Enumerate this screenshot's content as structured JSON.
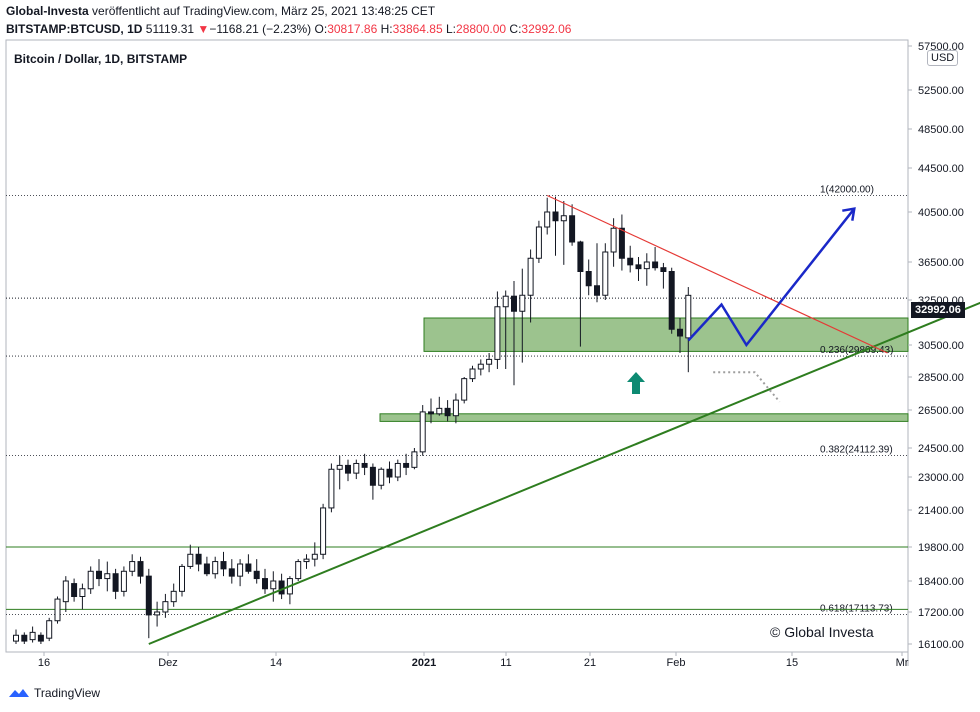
{
  "header": {
    "author": "Global-Investa",
    "published_text": "veröffentlicht auf TradingView.com, März 25, 2021 13:48:25 CET",
    "symbol": "BITSTAMP:BTCUSD, 1D",
    "last": "51119.31",
    "change": "−1168.21 (−2.23%)",
    "o_label": "O:",
    "o_val": "30817.86",
    "h_label": "H:",
    "h_val": "33864.85",
    "l_label": "L:",
    "l_val": "28800.00",
    "c_label": "C:",
    "c_val": "32992.06"
  },
  "chart_title": "Bitcoin / Dollar, 1D, BITSTAMP",
  "currency": "USD",
  "last_price_label": "32992.06",
  "copyright": "© Global Investa",
  "brand": "TradingView",
  "colors": {
    "up": "#ffffff",
    "down": "#131722",
    "zone": "#8bb87a",
    "trend": "#2e7d1f",
    "resist": "#e53935",
    "projection": "#1a28c8",
    "arrow": "#0d8a72",
    "grid": "#131722"
  },
  "chart_data": {
    "type": "candlestick",
    "ylim": [
      16100,
      57500
    ],
    "y_ticks": [
      57500,
      52500,
      48500,
      44500,
      40500,
      36500,
      32500,
      30500,
      28500,
      26500,
      24500,
      23000,
      21400,
      19800,
      18400,
      17200,
      16100
    ],
    "y_tick_labels": [
      "57500.00",
      "52500.00",
      "48500.00",
      "44500.00",
      "40500.00",
      "36500.00",
      "32500.00",
      "30500.00",
      "28500.00",
      "26500.00",
      "24500.00",
      "23000.00",
      "21400.00",
      "19800.00",
      "18400.00",
      "17200.00",
      "16100.00"
    ],
    "x_tick_labels": [
      "16",
      "Dez",
      "14",
      "2021",
      "11",
      "21",
      "Feb",
      "15",
      "Mr"
    ],
    "fib_levels": [
      {
        "label": "1(42000.00)",
        "value": 42000
      },
      {
        "label": "0.236(29809.43)",
        "value": 29809
      },
      {
        "label": "0.382(24112.39)",
        "value": 24112
      },
      {
        "label": "0.618(17113.73)",
        "value": 17114
      }
    ],
    "horizontal_levels": [
      32700,
      19800,
      17300
    ],
    "support_zones": [
      {
        "from": 30100,
        "to": 31700
      },
      {
        "from": 25900,
        "to": 26300
      }
    ],
    "candles": [
      {
        "d": 0,
        "o": 16200,
        "h": 16600,
        "l": 16100,
        "c": 16400
      },
      {
        "d": 1,
        "o": 16400,
        "h": 16500,
        "l": 16100,
        "c": 16200
      },
      {
        "d": 2,
        "o": 16250,
        "h": 16700,
        "l": 16150,
        "c": 16500
      },
      {
        "d": 3,
        "o": 16400,
        "h": 16500,
        "l": 16100,
        "c": 16200
      },
      {
        "d": 4,
        "o": 16300,
        "h": 17000,
        "l": 16200,
        "c": 16900
      },
      {
        "d": 5,
        "o": 16900,
        "h": 17800,
        "l": 16800,
        "c": 17700
      },
      {
        "d": 6,
        "o": 17600,
        "h": 18600,
        "l": 17200,
        "c": 18400
      },
      {
        "d": 7,
        "o": 18300,
        "h": 18500,
        "l": 17600,
        "c": 17800
      },
      {
        "d": 8,
        "o": 17800,
        "h": 18300,
        "l": 17300,
        "c": 18100
      },
      {
        "d": 9,
        "o": 18100,
        "h": 19000,
        "l": 17900,
        "c": 18800
      },
      {
        "d": 10,
        "o": 18800,
        "h": 19300,
        "l": 18200,
        "c": 18500
      },
      {
        "d": 11,
        "o": 18500,
        "h": 19200,
        "l": 18000,
        "c": 18700
      },
      {
        "d": 12,
        "o": 18700,
        "h": 18900,
        "l": 17700,
        "c": 18000
      },
      {
        "d": 13,
        "o": 18000,
        "h": 19000,
        "l": 17800,
        "c": 18800
      },
      {
        "d": 14,
        "o": 18800,
        "h": 19500,
        "l": 18600,
        "c": 19200
      },
      {
        "d": 15,
        "o": 19200,
        "h": 19400,
        "l": 18300,
        "c": 18600
      },
      {
        "d": 16,
        "o": 18600,
        "h": 18900,
        "l": 16300,
        "c": 17100
      },
      {
        "d": 17,
        "o": 17100,
        "h": 17600,
        "l": 16700,
        "c": 17200
      },
      {
        "d": 18,
        "o": 17200,
        "h": 17900,
        "l": 17000,
        "c": 17600
      },
      {
        "d": 19,
        "o": 17600,
        "h": 18300,
        "l": 17400,
        "c": 18000
      },
      {
        "d": 20,
        "o": 18000,
        "h": 19100,
        "l": 17800,
        "c": 19000
      },
      {
        "d": 21,
        "o": 19000,
        "h": 19900,
        "l": 18900,
        "c": 19500
      },
      {
        "d": 22,
        "o": 19500,
        "h": 19800,
        "l": 18800,
        "c": 19100
      },
      {
        "d": 23,
        "o": 19100,
        "h": 19400,
        "l": 18600,
        "c": 18700
      },
      {
        "d": 24,
        "o": 18700,
        "h": 19400,
        "l": 18500,
        "c": 19200
      },
      {
        "d": 25,
        "o": 19200,
        "h": 19600,
        "l": 18600,
        "c": 18900
      },
      {
        "d": 26,
        "o": 18900,
        "h": 19300,
        "l": 18300,
        "c": 18600
      },
      {
        "d": 27,
        "o": 18600,
        "h": 19300,
        "l": 18200,
        "c": 19100
      },
      {
        "d": 28,
        "o": 19100,
        "h": 19500,
        "l": 18700,
        "c": 18800
      },
      {
        "d": 29,
        "o": 18800,
        "h": 19300,
        "l": 18300,
        "c": 18500
      },
      {
        "d": 30,
        "o": 18500,
        "h": 18900,
        "l": 17900,
        "c": 18100
      },
      {
        "d": 31,
        "o": 18100,
        "h": 18800,
        "l": 17600,
        "c": 18400
      },
      {
        "d": 32,
        "o": 18400,
        "h": 18700,
        "l": 17700,
        "c": 17900
      },
      {
        "d": 33,
        "o": 17900,
        "h": 18600,
        "l": 17500,
        "c": 18500
      },
      {
        "d": 34,
        "o": 18500,
        "h": 19300,
        "l": 18400,
        "c": 19200
      },
      {
        "d": 35,
        "o": 19200,
        "h": 19500,
        "l": 18900,
        "c": 19300
      },
      {
        "d": 36,
        "o": 19300,
        "h": 20000,
        "l": 19000,
        "c": 19500
      },
      {
        "d": 37,
        "o": 19500,
        "h": 21700,
        "l": 19300,
        "c": 21500
      },
      {
        "d": 38,
        "o": 21500,
        "h": 23700,
        "l": 21300,
        "c": 23400
      },
      {
        "d": 39,
        "o": 23400,
        "h": 24100,
        "l": 22400,
        "c": 23600
      },
      {
        "d": 40,
        "o": 23600,
        "h": 23900,
        "l": 22800,
        "c": 23200
      },
      {
        "d": 41,
        "o": 23200,
        "h": 23900,
        "l": 22900,
        "c": 23700
      },
      {
        "d": 42,
        "o": 23700,
        "h": 24200,
        "l": 23100,
        "c": 23500
      },
      {
        "d": 43,
        "o": 23500,
        "h": 23700,
        "l": 21900,
        "c": 22600
      },
      {
        "d": 44,
        "o": 22600,
        "h": 23500,
        "l": 22400,
        "c": 23400
      },
      {
        "d": 45,
        "o": 23400,
        "h": 23800,
        "l": 22700,
        "c": 23000
      },
      {
        "d": 46,
        "o": 23000,
        "h": 23900,
        "l": 22800,
        "c": 23700
      },
      {
        "d": 47,
        "o": 23700,
        "h": 24200,
        "l": 23100,
        "c": 23500
      },
      {
        "d": 48,
        "o": 23500,
        "h": 24500,
        "l": 23400,
        "c": 24300
      },
      {
        "d": 49,
        "o": 24300,
        "h": 26800,
        "l": 24100,
        "c": 26400
      },
      {
        "d": 50,
        "o": 26400,
        "h": 27200,
        "l": 25800,
        "c": 26300
      },
      {
        "d": 51,
        "o": 26300,
        "h": 27300,
        "l": 26200,
        "c": 26600
      },
      {
        "d": 52,
        "o": 26600,
        "h": 27100,
        "l": 25900,
        "c": 26200
      },
      {
        "d": 53,
        "o": 26200,
        "h": 27500,
        "l": 25800,
        "c": 27100
      },
      {
        "d": 54,
        "o": 27100,
        "h": 28500,
        "l": 26900,
        "c": 28400
      },
      {
        "d": 55,
        "o": 28400,
        "h": 29200,
        "l": 28200,
        "c": 29000
      },
      {
        "d": 56,
        "o": 29000,
        "h": 29600,
        "l": 28600,
        "c": 29300
      },
      {
        "d": 57,
        "o": 29300,
        "h": 30000,
        "l": 28800,
        "c": 29600
      },
      {
        "d": 58,
        "o": 29600,
        "h": 33400,
        "l": 29000,
        "c": 32200
      },
      {
        "d": 59,
        "o": 32200,
        "h": 33500,
        "l": 29000,
        "c": 32900
      },
      {
        "d": 60,
        "o": 32900,
        "h": 34500,
        "l": 28000,
        "c": 32000
      },
      {
        "d": 61,
        "o": 32000,
        "h": 35800,
        "l": 29400,
        "c": 33000
      },
      {
        "d": 62,
        "o": 33000,
        "h": 37500,
        "l": 31500,
        "c": 36800
      },
      {
        "d": 63,
        "o": 36800,
        "h": 39800,
        "l": 36400,
        "c": 39300
      },
      {
        "d": 64,
        "o": 39300,
        "h": 41800,
        "l": 38700,
        "c": 40500
      },
      {
        "d": 65,
        "o": 40500,
        "h": 41900,
        "l": 37000,
        "c": 39800
      },
      {
        "d": 66,
        "o": 39800,
        "h": 41500,
        "l": 36200,
        "c": 40200
      },
      {
        "d": 67,
        "o": 40200,
        "h": 41200,
        "l": 37800,
        "c": 38100
      },
      {
        "d": 68,
        "o": 38100,
        "h": 38200,
        "l": 30400,
        "c": 35500
      },
      {
        "d": 69,
        "o": 35500,
        "h": 36700,
        "l": 33000,
        "c": 34000
      },
      {
        "d": 70,
        "o": 34000,
        "h": 38000,
        "l": 32400,
        "c": 33000
      },
      {
        "d": 71,
        "o": 33000,
        "h": 38000,
        "l": 32500,
        "c": 37300
      },
      {
        "d": 72,
        "o": 37300,
        "h": 40000,
        "l": 36000,
        "c": 39200
      },
      {
        "d": 73,
        "o": 39200,
        "h": 40300,
        "l": 35600,
        "c": 36800
      },
      {
        "d": 74,
        "o": 36800,
        "h": 37800,
        "l": 35400,
        "c": 36200
      },
      {
        "d": 75,
        "o": 36200,
        "h": 36900,
        "l": 34500,
        "c": 35800
      },
      {
        "d": 76,
        "o": 35800,
        "h": 37200,
        "l": 34000,
        "c": 36500
      },
      {
        "d": 77,
        "o": 36500,
        "h": 37700,
        "l": 35600,
        "c": 35900
      },
      {
        "d": 78,
        "o": 35900,
        "h": 36400,
        "l": 33700,
        "c": 35500
      },
      {
        "d": 79,
        "o": 35500,
        "h": 35900,
        "l": 31000,
        "c": 31200
      },
      {
        "d": 80,
        "o": 31200,
        "h": 31700,
        "l": 30000,
        "c": 30900
      },
      {
        "d": 81,
        "o": 30817,
        "h": 33864,
        "l": 28800,
        "c": 32992
      }
    ],
    "trendline_support": [
      {
        "d": 16,
        "v": 16100
      },
      {
        "d": 117,
        "v": 32500
      }
    ],
    "trendline_resistance": [
      {
        "d": 64,
        "v": 42000
      },
      {
        "d": 105,
        "v": 30000
      }
    ],
    "projection_path": [
      {
        "d": 81,
        "v": 30700
      },
      {
        "d": 85,
        "v": 32300
      },
      {
        "d": 88,
        "v": 30500
      },
      {
        "d": 101,
        "v": 40800
      }
    ],
    "dotted_path": [
      {
        "d": 84,
        "v": 28800
      },
      {
        "d": 89,
        "v": 28800
      },
      {
        "d": 92,
        "v": 27000
      }
    ]
  }
}
